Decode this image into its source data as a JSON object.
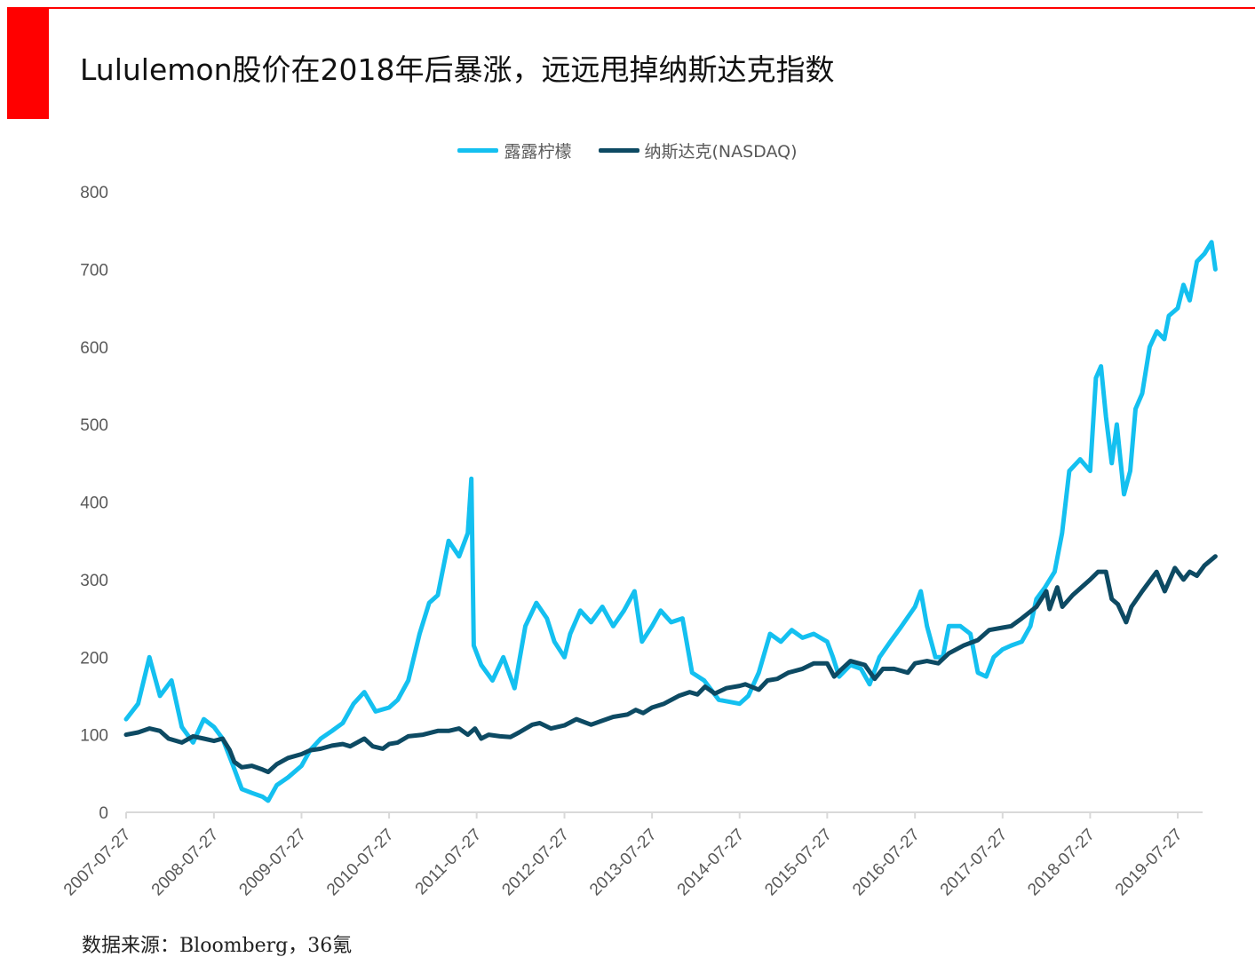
{
  "title": "Lululemon股价在2018年后暴涨，远远甩掉纳斯达克指数",
  "source": "数据来源：Bloomberg，36氪",
  "colors": {
    "accent": "#ff0000",
    "lululemon": "#14c0f0",
    "nasdaq": "#0d4a63",
    "axis": "#d9d9d9",
    "tick_text": "#595959"
  },
  "chart_data": {
    "type": "line",
    "ylim": [
      0,
      800
    ],
    "y_ticks": [
      "0",
      "100",
      "200",
      "300",
      "400",
      "500",
      "600",
      "700",
      "800"
    ],
    "x_range": [
      "2007-07-27",
      "2019-12-31"
    ],
    "x_ticks": [
      "2007-07-27",
      "2008-07-27",
      "2009-07-27",
      "2010-07-27",
      "2011-07-27",
      "2012-07-27",
      "2013-07-27",
      "2014-07-27",
      "2015-07-27",
      "2016-07-27",
      "2017-07-27",
      "2018-07-27",
      "2019-07-27"
    ],
    "legend_position": "top",
    "grid": false,
    "series": [
      {
        "name": "露露柠檬",
        "color": "#14c0f0",
        "points": [
          [
            "2007-07-27",
            120
          ],
          [
            "2007-09-15",
            140
          ],
          [
            "2007-11-01",
            200
          ],
          [
            "2007-12-15",
            150
          ],
          [
            "2008-02-01",
            170
          ],
          [
            "2008-03-15",
            110
          ],
          [
            "2008-05-01",
            90
          ],
          [
            "2008-06-15",
            120
          ],
          [
            "2008-07-27",
            110
          ],
          [
            "2008-09-01",
            95
          ],
          [
            "2008-10-15",
            60
          ],
          [
            "2008-11-20",
            30
          ],
          [
            "2009-01-01",
            25
          ],
          [
            "2009-02-15",
            20
          ],
          [
            "2009-03-10",
            15
          ],
          [
            "2009-04-15",
            35
          ],
          [
            "2009-06-01",
            45
          ],
          [
            "2009-07-27",
            60
          ],
          [
            "2009-09-01",
            80
          ],
          [
            "2009-10-15",
            95
          ],
          [
            "2009-12-01",
            105
          ],
          [
            "2010-01-15",
            115
          ],
          [
            "2010-03-01",
            140
          ],
          [
            "2010-04-15",
            155
          ],
          [
            "2010-06-01",
            130
          ],
          [
            "2010-07-27",
            135
          ],
          [
            "2010-09-01",
            145
          ],
          [
            "2010-10-15",
            170
          ],
          [
            "2010-12-01",
            230
          ],
          [
            "2011-01-10",
            270
          ],
          [
            "2011-02-15",
            280
          ],
          [
            "2011-04-01",
            350
          ],
          [
            "2011-05-15",
            330
          ],
          [
            "2011-06-20",
            360
          ],
          [
            "2011-07-05",
            430
          ],
          [
            "2011-07-15",
            215
          ],
          [
            "2011-08-15",
            190
          ],
          [
            "2011-10-01",
            170
          ],
          [
            "2011-11-15",
            200
          ],
          [
            "2012-01-01",
            160
          ],
          [
            "2012-02-15",
            240
          ],
          [
            "2012-04-01",
            270
          ],
          [
            "2012-05-15",
            250
          ],
          [
            "2012-06-15",
            220
          ],
          [
            "2012-07-27",
            200
          ],
          [
            "2012-08-20",
            230
          ],
          [
            "2012-10-01",
            260
          ],
          [
            "2012-11-15",
            245
          ],
          [
            "2013-01-01",
            265
          ],
          [
            "2013-02-15",
            240
          ],
          [
            "2013-04-01",
            260
          ],
          [
            "2013-05-15",
            285
          ],
          [
            "2013-06-15",
            220
          ],
          [
            "2013-07-27",
            240
          ],
          [
            "2013-09-01",
            260
          ],
          [
            "2013-10-15",
            245
          ],
          [
            "2013-12-01",
            250
          ],
          [
            "2014-01-10",
            180
          ],
          [
            "2014-03-01",
            170
          ],
          [
            "2014-05-01",
            145
          ],
          [
            "2014-07-27",
            140
          ],
          [
            "2014-09-01",
            150
          ],
          [
            "2014-10-15",
            180
          ],
          [
            "2014-12-01",
            230
          ],
          [
            "2015-01-15",
            220
          ],
          [
            "2015-03-01",
            235
          ],
          [
            "2015-04-15",
            225
          ],
          [
            "2015-06-01",
            230
          ],
          [
            "2015-07-27",
            220
          ],
          [
            "2015-08-20",
            200
          ],
          [
            "2015-09-15",
            175
          ],
          [
            "2015-11-01",
            190
          ],
          [
            "2015-12-15",
            185
          ],
          [
            "2016-01-20",
            165
          ],
          [
            "2016-03-01",
            200
          ],
          [
            "2016-04-15",
            220
          ],
          [
            "2016-06-01",
            240
          ],
          [
            "2016-07-27",
            265
          ],
          [
            "2016-08-20",
            285
          ],
          [
            "2016-09-15",
            240
          ],
          [
            "2016-10-20",
            200
          ],
          [
            "2016-11-20",
            200
          ],
          [
            "2016-12-15",
            240
          ],
          [
            "2017-02-01",
            240
          ],
          [
            "2017-03-15",
            230
          ],
          [
            "2017-04-15",
            180
          ],
          [
            "2017-05-20",
            175
          ],
          [
            "2017-06-20",
            200
          ],
          [
            "2017-07-27",
            210
          ],
          [
            "2017-09-01",
            215
          ],
          [
            "2017-10-15",
            220
          ],
          [
            "2017-11-20",
            240
          ],
          [
            "2017-12-15",
            275
          ],
          [
            "2018-01-20",
            290
          ],
          [
            "2018-03-01",
            310
          ],
          [
            "2018-04-01",
            360
          ],
          [
            "2018-05-01",
            440
          ],
          [
            "2018-06-15",
            455
          ],
          [
            "2018-07-27",
            440
          ],
          [
            "2018-08-20",
            560
          ],
          [
            "2018-09-10",
            575
          ],
          [
            "2018-10-01",
            510
          ],
          [
            "2018-10-25",
            450
          ],
          [
            "2018-11-15",
            500
          ],
          [
            "2018-12-15",
            410
          ],
          [
            "2019-01-10",
            440
          ],
          [
            "2019-02-01",
            520
          ],
          [
            "2019-03-01",
            540
          ],
          [
            "2019-04-01",
            600
          ],
          [
            "2019-05-01",
            620
          ],
          [
            "2019-06-01",
            610
          ],
          [
            "2019-06-20",
            640
          ],
          [
            "2019-07-27",
            650
          ],
          [
            "2019-08-20",
            680
          ],
          [
            "2019-09-15",
            660
          ],
          [
            "2019-10-15",
            710
          ],
          [
            "2019-11-15",
            720
          ],
          [
            "2019-12-15",
            735
          ],
          [
            "2019-12-31",
            700
          ]
        ]
      },
      {
        "name": "纳斯达克(NASDAQ)",
        "color": "#0d4a63",
        "points": [
          [
            "2007-07-27",
            100
          ],
          [
            "2007-09-15",
            103
          ],
          [
            "2007-11-01",
            108
          ],
          [
            "2007-12-15",
            105
          ],
          [
            "2008-01-20",
            95
          ],
          [
            "2008-03-15",
            90
          ],
          [
            "2008-05-01",
            98
          ],
          [
            "2008-06-15",
            95
          ],
          [
            "2008-07-27",
            92
          ],
          [
            "2008-09-01",
            95
          ],
          [
            "2008-10-01",
            80
          ],
          [
            "2008-10-20",
            65
          ],
          [
            "2008-11-20",
            58
          ],
          [
            "2009-01-01",
            60
          ],
          [
            "2009-02-15",
            55
          ],
          [
            "2009-03-10",
            52
          ],
          [
            "2009-04-15",
            62
          ],
          [
            "2009-06-01",
            70
          ],
          [
            "2009-07-27",
            75
          ],
          [
            "2009-09-01",
            80
          ],
          [
            "2009-10-15",
            82
          ],
          [
            "2009-12-01",
            86
          ],
          [
            "2010-01-15",
            88
          ],
          [
            "2010-02-15",
            85
          ],
          [
            "2010-04-15",
            95
          ],
          [
            "2010-05-20",
            85
          ],
          [
            "2010-07-01",
            82
          ],
          [
            "2010-07-27",
            88
          ],
          [
            "2010-09-01",
            90
          ],
          [
            "2010-10-15",
            98
          ],
          [
            "2010-12-15",
            100
          ],
          [
            "2011-02-15",
            105
          ],
          [
            "2011-04-01",
            105
          ],
          [
            "2011-05-15",
            108
          ],
          [
            "2011-06-20",
            100
          ],
          [
            "2011-07-20",
            108
          ],
          [
            "2011-08-15",
            95
          ],
          [
            "2011-09-15",
            100
          ],
          [
            "2011-11-01",
            98
          ],
          [
            "2011-12-15",
            97
          ],
          [
            "2012-01-20",
            103
          ],
          [
            "2012-03-15",
            113
          ],
          [
            "2012-04-15",
            115
          ],
          [
            "2012-06-01",
            108
          ],
          [
            "2012-07-27",
            112
          ],
          [
            "2012-09-15",
            120
          ],
          [
            "2012-11-15",
            113
          ],
          [
            "2012-12-31",
            118
          ],
          [
            "2013-02-15",
            123
          ],
          [
            "2013-04-15",
            126
          ],
          [
            "2013-05-20",
            132
          ],
          [
            "2013-06-20",
            128
          ],
          [
            "2013-07-27",
            135
          ],
          [
            "2013-09-15",
            140
          ],
          [
            "2013-11-15",
            150
          ],
          [
            "2013-12-31",
            155
          ],
          [
            "2014-02-01",
            152
          ],
          [
            "2014-03-05",
            162
          ],
          [
            "2014-04-15",
            153
          ],
          [
            "2014-06-01",
            160
          ],
          [
            "2014-07-27",
            163
          ],
          [
            "2014-08-20",
            165
          ],
          [
            "2014-10-15",
            158
          ],
          [
            "2014-11-20",
            170
          ],
          [
            "2014-12-31",
            172
          ],
          [
            "2015-02-15",
            180
          ],
          [
            "2015-04-15",
            185
          ],
          [
            "2015-06-01",
            192
          ],
          [
            "2015-07-27",
            192
          ],
          [
            "2015-08-25",
            175
          ],
          [
            "2015-09-20",
            183
          ],
          [
            "2015-11-01",
            195
          ],
          [
            "2015-12-31",
            190
          ],
          [
            "2016-02-10",
            172
          ],
          [
            "2016-03-15",
            185
          ],
          [
            "2016-05-01",
            185
          ],
          [
            "2016-06-27",
            180
          ],
          [
            "2016-07-27",
            192
          ],
          [
            "2016-09-15",
            195
          ],
          [
            "2016-11-01",
            192
          ],
          [
            "2016-12-15",
            205
          ],
          [
            "2017-02-15",
            215
          ],
          [
            "2017-04-15",
            222
          ],
          [
            "2017-06-01",
            235
          ],
          [
            "2017-07-27",
            238
          ],
          [
            "2017-09-01",
            240
          ],
          [
            "2017-10-15",
            250
          ],
          [
            "2017-12-15",
            265
          ],
          [
            "2018-01-25",
            285
          ],
          [
            "2018-02-08",
            262
          ],
          [
            "2018-03-12",
            290
          ],
          [
            "2018-04-02",
            265
          ],
          [
            "2018-05-15",
            280
          ],
          [
            "2018-07-27",
            300
          ],
          [
            "2018-08-29",
            310
          ],
          [
            "2018-10-01",
            310
          ],
          [
            "2018-10-25",
            275
          ],
          [
            "2018-11-20",
            268
          ],
          [
            "2018-12-24",
            245
          ],
          [
            "2019-01-15",
            265
          ],
          [
            "2019-03-01",
            285
          ],
          [
            "2019-04-30",
            310
          ],
          [
            "2019-06-03",
            285
          ],
          [
            "2019-07-15",
            315
          ],
          [
            "2019-08-20",
            300
          ],
          [
            "2019-09-15",
            310
          ],
          [
            "2019-10-15",
            305
          ],
          [
            "2019-11-15",
            318
          ],
          [
            "2019-12-31",
            330
          ]
        ]
      }
    ]
  }
}
